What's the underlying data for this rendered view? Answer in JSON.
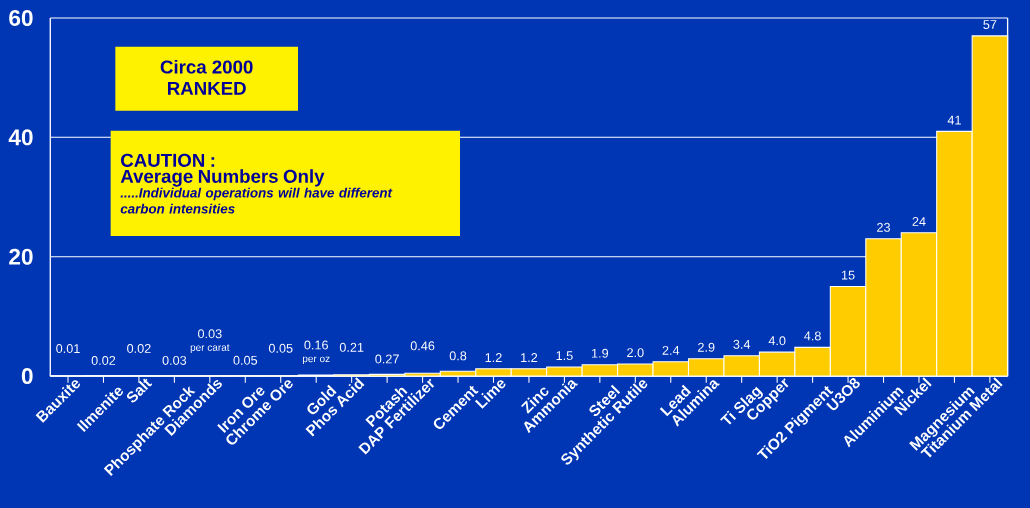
{
  "chart_data": {
    "type": "bar",
    "categories": [
      "Bauxite",
      "Ilmenite",
      "Salt",
      "Phosphate Rock",
      "Diamonds",
      "Iron Ore",
      "Chrome Ore",
      "Gold",
      "Phos Acid",
      "Potash",
      "DAP Fertilizer",
      "Cement",
      "Lime",
      "Zinc",
      "Ammonia",
      "Steel",
      "Synthetic Rutile",
      "Lead",
      "Alumina",
      "Ti Slag",
      "Copper",
      "TiO2 Pigment",
      "U3O8",
      "Aluminium",
      "Nickel",
      "Magnesium",
      "Titanium Metal"
    ],
    "values": [
      0.01,
      0.02,
      0.02,
      0.03,
      0.03,
      0.05,
      0.05,
      0.16,
      0.21,
      0.27,
      0.46,
      0.8,
      1.2,
      1.2,
      1.5,
      1.9,
      2.0,
      2.4,
      2.9,
      3.4,
      4.0,
      4.8,
      15,
      23,
      24,
      41,
      57
    ],
    "value_labels": [
      "0.01",
      "0.02",
      "0.02",
      "0.03",
      "0.03",
      "0.05",
      "0.05",
      "0.16",
      "0.21",
      "0.27",
      "0.46",
      "0.8",
      "1.2",
      "1.2",
      "1.5",
      "1.9",
      "2.0",
      "2.4",
      "2.9",
      "3.4",
      "4.0",
      "4.8",
      "15",
      "23",
      "24",
      "41",
      "57"
    ],
    "color": "#ffcc00",
    "ylim": [
      0,
      60
    ],
    "yticks": [
      0,
      20,
      40,
      60
    ],
    "grid": "y",
    "annotations": [
      "Circa 2000",
      "RANKED",
      "CAUTION :",
      "Average Numbers Only",
      ".....Individual operations will have different carbon intensities",
      {
        "text": "per carat",
        "x": "Diamonds",
        "y": 0.03
      },
      {
        "text": "per oz",
        "x": "Gold",
        "y": 0.16
      }
    ]
  }
}
